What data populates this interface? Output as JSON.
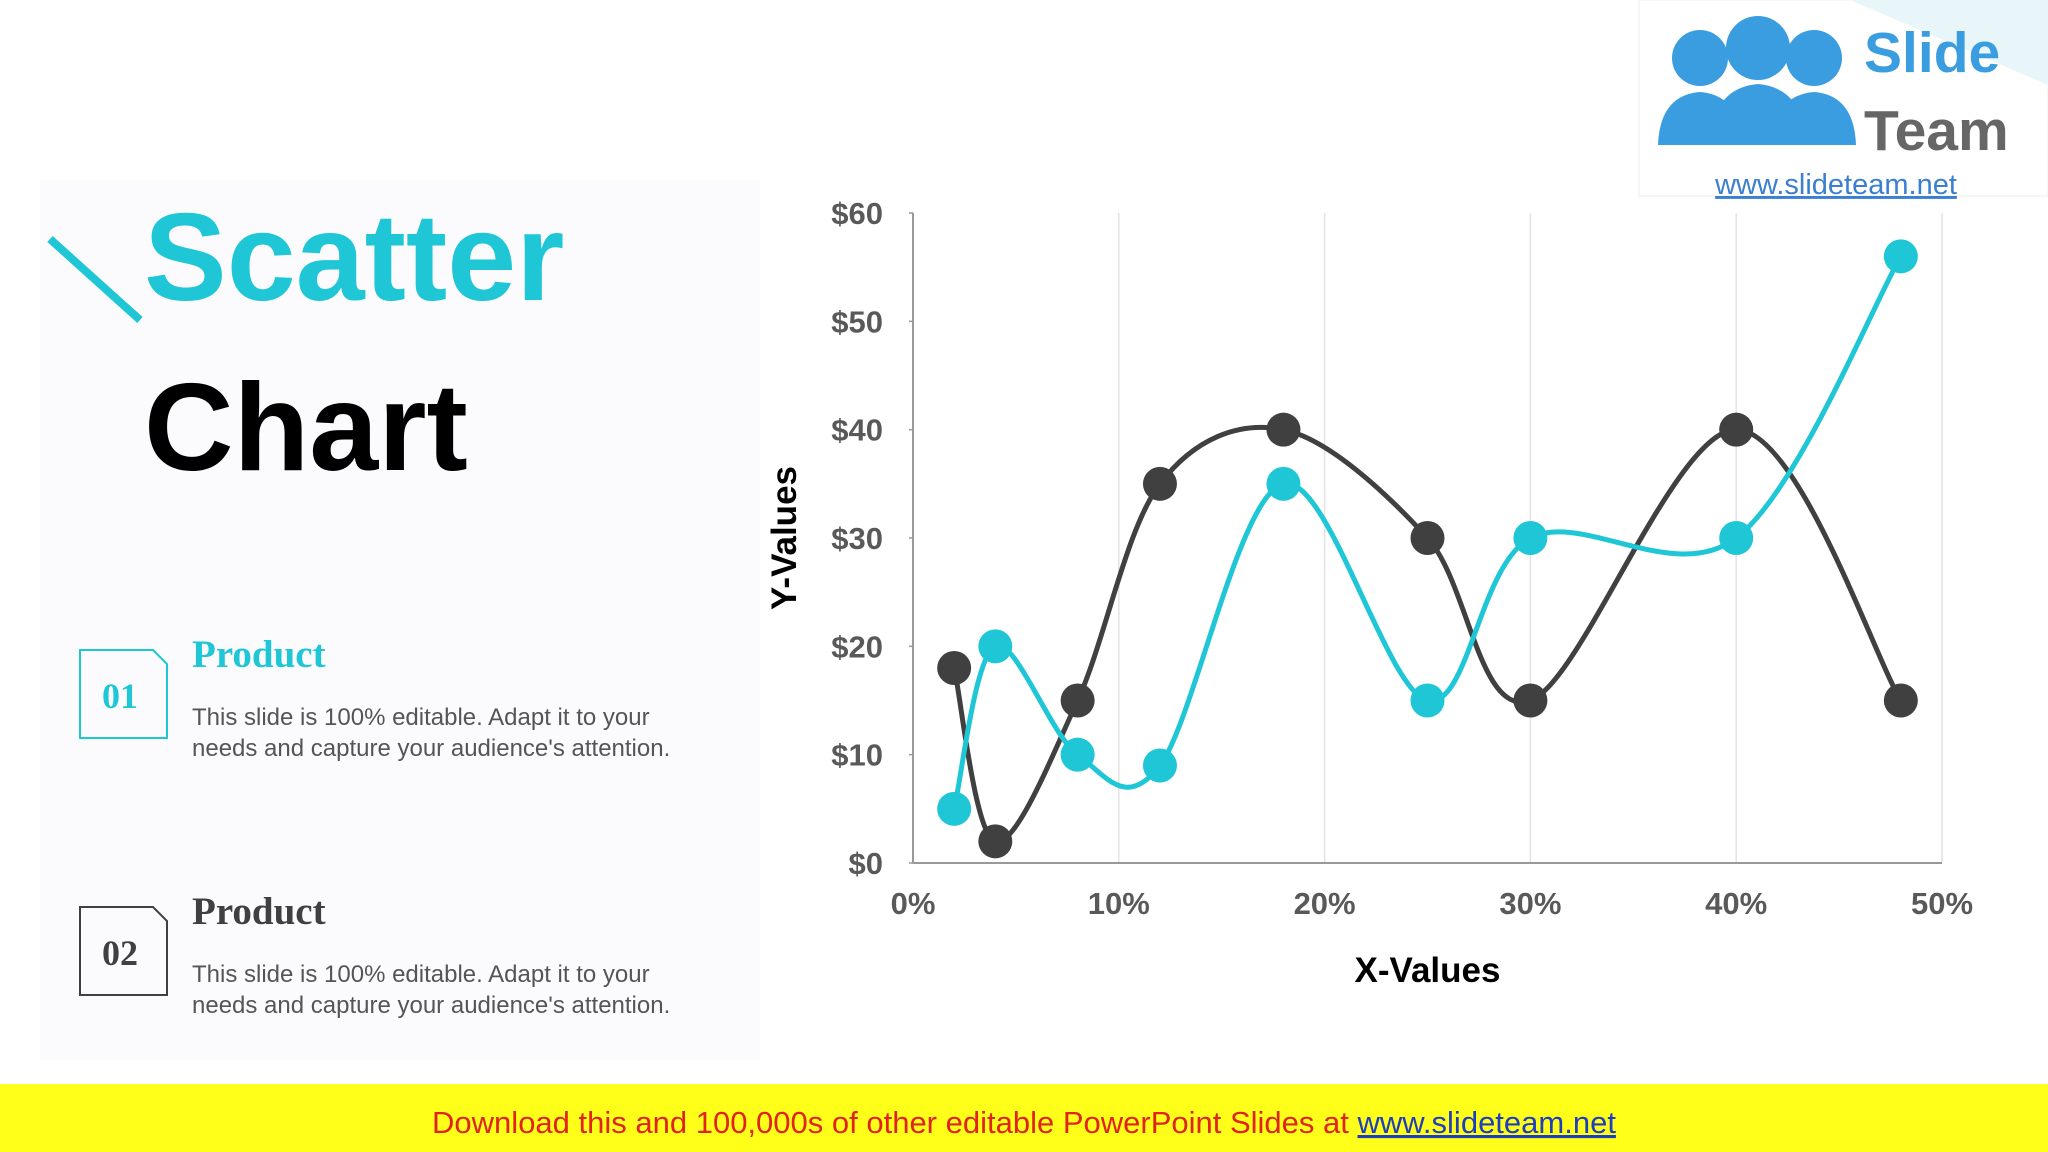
{
  "slide": {
    "title_line1": "Scatter",
    "title_line2": "Chart",
    "items": [
      {
        "number": "01",
        "heading": "Product",
        "lines": [
          "This slide is 100% editable. Adapt it to your",
          "needs and capture your audience's attention."
        ]
      },
      {
        "number": "02",
        "heading": "Product",
        "lines": [
          "This slide is 100% editable. Adapt it to your",
          "needs and capture your audience's attention."
        ]
      }
    ],
    "logo": {
      "word1": "Slide",
      "word2": "Team",
      "url": "www.slideteam.net"
    },
    "footer": {
      "text": "Download this and 100,000s of other editable PowerPoint Slides at ",
      "link": "www.slideteam.net"
    }
  },
  "chart_data": {
    "type": "scatter",
    "smooth": true,
    "x_label": "X-Values",
    "y_label": "Y-Values",
    "x": [
      2,
      4,
      8,
      12,
      18,
      25,
      30,
      40,
      48
    ],
    "series": [
      {
        "color": "#404040",
        "values": [
          18,
          2,
          15,
          35,
          40,
          30,
          15,
          40,
          15
        ]
      },
      {
        "color": "#1ec6d6",
        "values": [
          5,
          20,
          10,
          9,
          35,
          15,
          30,
          30,
          56
        ]
      }
    ],
    "xlim": [
      0,
      50
    ],
    "ylim": [
      0,
      60
    ],
    "xticks": [
      {
        "value": 0,
        "label": "0%"
      },
      {
        "value": 10,
        "label": "10%"
      },
      {
        "value": 20,
        "label": "20%"
      },
      {
        "value": 30,
        "label": "30%"
      },
      {
        "value": 40,
        "label": "40%"
      },
      {
        "value": 50,
        "label": "50%"
      }
    ],
    "yticks": [
      {
        "value": 0,
        "label": "$0"
      },
      {
        "value": 10,
        "label": "$10"
      },
      {
        "value": 20,
        "label": "$20"
      },
      {
        "value": 30,
        "label": "$30"
      },
      {
        "value": 40,
        "label": "$40"
      },
      {
        "value": 50,
        "label": "$50"
      },
      {
        "value": 60,
        "label": "$60"
      }
    ],
    "grid": true
  }
}
